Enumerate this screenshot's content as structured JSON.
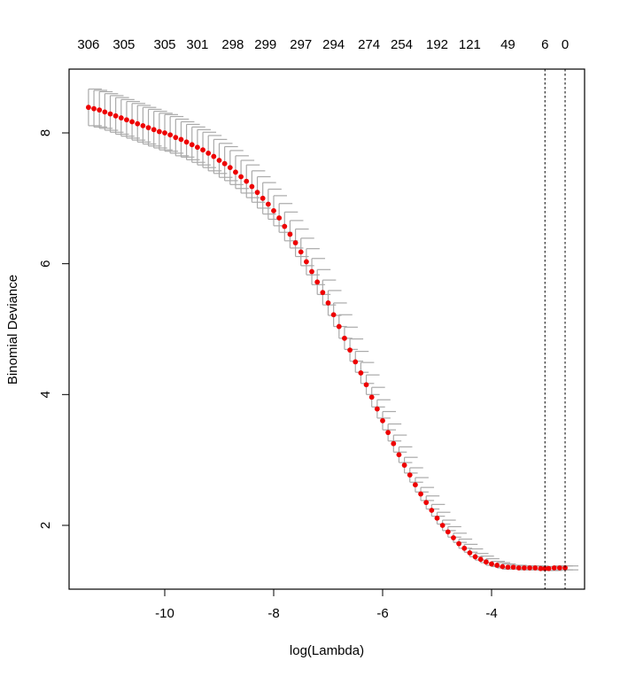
{
  "chart_data": {
    "type": "scatter",
    "subtype": "cv.glmnet deviance plot with error bars",
    "title": "",
    "xlabel": "log(Lambda)",
    "ylabel": "Binomial Deviance",
    "xlim": [
      -11.75,
      -2.3
    ],
    "ylim": [
      1.0,
      8.95
    ],
    "x_ticks": [
      -10,
      -8,
      -6,
      -4
    ],
    "x_tick_labels": [
      "-10",
      "-8",
      "-6",
      "-4"
    ],
    "y_ticks": [
      2,
      4,
      6,
      8
    ],
    "y_tick_labels": [
      "2",
      "4",
      "6",
      "8"
    ],
    "top_axis_label_positions": [
      -11.4,
      -10.75,
      -10.0,
      -9.4,
      -8.75,
      -8.15,
      -7.5,
      -6.9,
      -6.25,
      -5.65,
      -5.0,
      -4.4,
      -3.7,
      -3.02,
      -2.65
    ],
    "top_axis_labels": [
      "306",
      "305",
      "305",
      "301",
      "298",
      "299",
      "297",
      "294",
      "274",
      "254",
      "192",
      "121",
      "49",
      "6",
      "0"
    ],
    "vlines": [
      {
        "name": "lambda.min",
        "x": -3.02,
        "style": "dotted"
      },
      {
        "name": "lambda.1se",
        "x": -2.65,
        "style": "dotted"
      }
    ],
    "grid": false,
    "legend": null,
    "point_color": "#ee0000",
    "errorbar_color": "#aaaaaa",
    "series": [
      {
        "name": "mean cross-validated deviance",
        "x": [
          -11.4,
          -11.3,
          -11.2,
          -11.1,
          -11.0,
          -10.9,
          -10.8,
          -10.7,
          -10.6,
          -10.5,
          -10.4,
          -10.3,
          -10.2,
          -10.1,
          -10.0,
          -9.9,
          -9.8,
          -9.7,
          -9.6,
          -9.5,
          -9.4,
          -9.3,
          -9.2,
          -9.1,
          -9.0,
          -8.9,
          -8.8,
          -8.7,
          -8.6,
          -8.5,
          -8.4,
          -8.3,
          -8.2,
          -8.1,
          -8.0,
          -7.9,
          -7.8,
          -7.7,
          -7.6,
          -7.5,
          -7.4,
          -7.3,
          -7.2,
          -7.1,
          -7.0,
          -6.9,
          -6.8,
          -6.7,
          -6.6,
          -6.5,
          -6.4,
          -6.3,
          -6.2,
          -6.1,
          -6.0,
          -5.9,
          -5.8,
          -5.7,
          -5.6,
          -5.5,
          -5.4,
          -5.3,
          -5.2,
          -5.1,
          -5.0,
          -4.9,
          -4.8,
          -4.7,
          -4.6,
          -4.5,
          -4.4,
          -4.3,
          -4.2,
          -4.1,
          -4.0,
          -3.9,
          -3.8,
          -3.7,
          -3.6,
          -3.5,
          -3.4,
          -3.3,
          -3.2,
          -3.1,
          -3.02,
          -2.95,
          -2.85,
          -2.75,
          -2.65
        ],
        "y": [
          8.39,
          8.37,
          8.35,
          8.32,
          8.29,
          8.26,
          8.23,
          8.2,
          8.17,
          8.14,
          8.11,
          8.08,
          8.05,
          8.02,
          8.0,
          7.97,
          7.93,
          7.9,
          7.86,
          7.82,
          7.78,
          7.74,
          7.69,
          7.64,
          7.58,
          7.53,
          7.47,
          7.4,
          7.33,
          7.26,
          7.18,
          7.09,
          7.0,
          6.91,
          6.81,
          6.7,
          6.57,
          6.45,
          6.32,
          6.18,
          6.03,
          5.88,
          5.72,
          5.56,
          5.4,
          5.22,
          5.04,
          4.86,
          4.68,
          4.5,
          4.33,
          4.15,
          3.96,
          3.78,
          3.6,
          3.42,
          3.25,
          3.08,
          2.92,
          2.77,
          2.62,
          2.48,
          2.35,
          2.23,
          2.11,
          2.0,
          1.9,
          1.81,
          1.72,
          1.65,
          1.58,
          1.52,
          1.48,
          1.44,
          1.41,
          1.39,
          1.37,
          1.36,
          1.36,
          1.35,
          1.35,
          1.35,
          1.35,
          1.34,
          1.34,
          1.34,
          1.35,
          1.35,
          1.35
        ],
        "error_halfwidth": [
          0.28,
          0.28,
          0.28,
          0.28,
          0.28,
          0.28,
          0.28,
          0.28,
          0.28,
          0.28,
          0.28,
          0.28,
          0.28,
          0.28,
          0.28,
          0.28,
          0.28,
          0.27,
          0.27,
          0.27,
          0.27,
          0.27,
          0.27,
          0.26,
          0.26,
          0.26,
          0.26,
          0.25,
          0.25,
          0.25,
          0.24,
          0.24,
          0.24,
          0.23,
          0.23,
          0.22,
          0.22,
          0.21,
          0.21,
          0.21,
          0.2,
          0.2,
          0.19,
          0.19,
          0.19,
          0.18,
          0.18,
          0.17,
          0.17,
          0.16,
          0.16,
          0.15,
          0.15,
          0.14,
          0.14,
          0.13,
          0.13,
          0.12,
          0.12,
          0.11,
          0.11,
          0.1,
          0.1,
          0.09,
          0.09,
          0.08,
          0.08,
          0.07,
          0.07,
          0.06,
          0.06,
          0.05,
          0.05,
          0.05,
          0.04,
          0.04,
          0.04,
          0.03,
          0.03,
          0.03,
          0.03,
          0.03,
          0.03,
          0.03,
          0.03,
          0.03,
          0.03,
          0.03,
          0.03
        ]
      }
    ]
  }
}
